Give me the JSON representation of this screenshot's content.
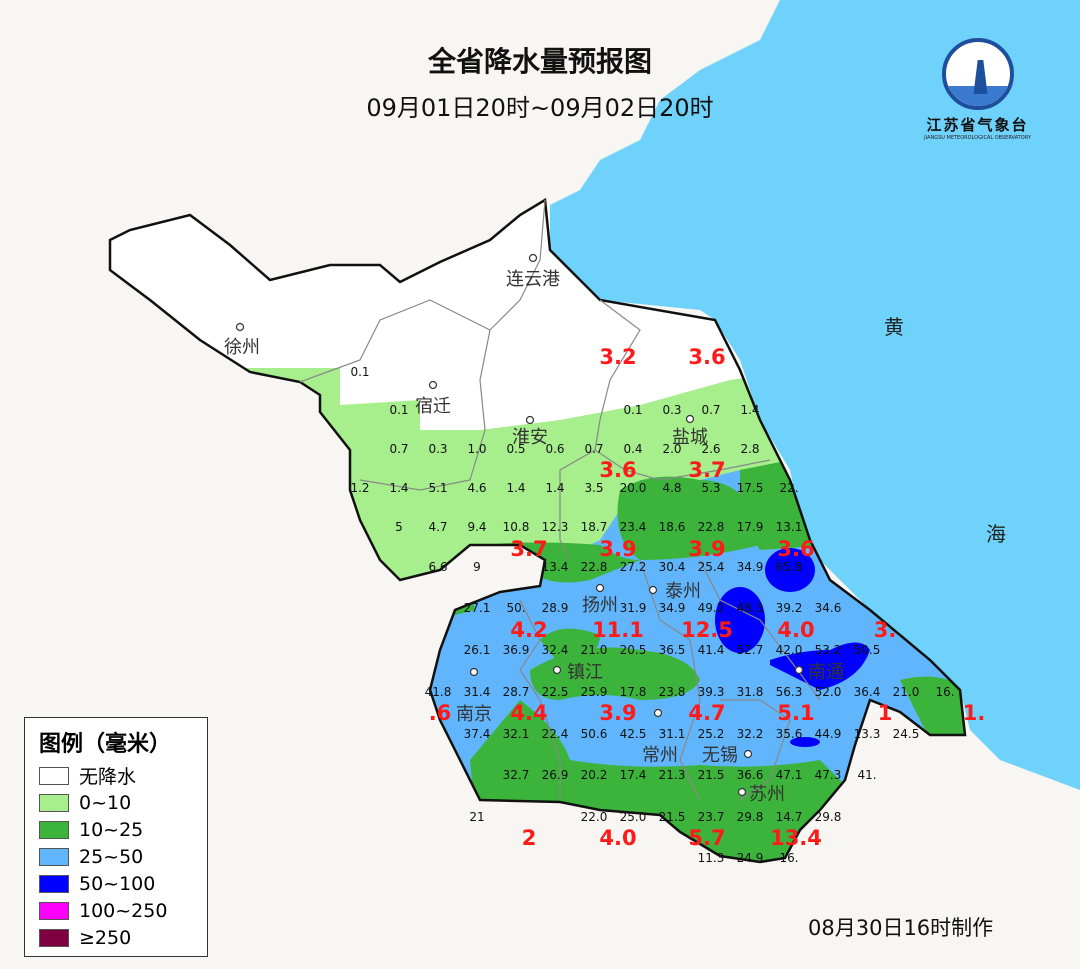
{
  "title": "全省降水量预报图",
  "subtitle": "09月01日20时~09月02日20时",
  "logo": {
    "name": "江苏省气象台",
    "english": "JIANGSU METEOROLOGICAL OBSERVATORY"
  },
  "colors": {
    "sea": "#6fd2fb",
    "land": "#f7f6f3",
    "none": "#ffffff",
    "r0_10": "#a6ef8c",
    "r10_25": "#3cb43c",
    "r25_50": "#61b5fd",
    "r50_100": "#0000fe",
    "r100_250": "#fd00fd",
    "r250": "#7f0040",
    "red_values": "#ff1a1a"
  },
  "sea_labels": [
    "黄",
    "海"
  ],
  "cities": [
    {
      "name": "连云港"
    },
    {
      "name": "徐州"
    },
    {
      "name": "宿迁"
    },
    {
      "name": "淮安"
    },
    {
      "name": "盐城"
    },
    {
      "name": "扬州"
    },
    {
      "name": "泰州"
    },
    {
      "name": "南京"
    },
    {
      "name": "镇江"
    },
    {
      "name": "南通"
    },
    {
      "name": "常州"
    },
    {
      "name": "无锡"
    },
    {
      "name": "苏州"
    }
  ],
  "station_values": [
    [
      "0.1"
    ],
    [
      null,
      "0.1",
      null,
      null,
      null,
      null,
      null,
      "0.1",
      "0.3",
      "0.7",
      "1.4"
    ],
    [
      null,
      "0.7",
      "0.3",
      "1.0",
      "0.5",
      "0.6",
      "0.7",
      "0.4",
      "2.0",
      "2.6",
      "2.8"
    ],
    [
      "1.2",
      "1.4",
      "5.1",
      "4.6",
      "1.4",
      "1.4",
      "3.5",
      "20.0",
      "4.8",
      "5.3",
      "17.5",
      "22."
    ],
    [
      null,
      "5",
      "4.7",
      "9.4",
      "10.8",
      "12.3",
      "18.7",
      "23.4",
      "18.6",
      "22.8",
      "17.9",
      "13.1"
    ],
    [
      null,
      null,
      "6.6",
      "9",
      null,
      "13.4",
      "22.8",
      "27.2",
      "30.4",
      "25.4",
      "34.9",
      "65.8"
    ],
    [
      null,
      null,
      null,
      "27.1",
      "50.",
      "28.9",
      null,
      "31.9",
      "34.9",
      "49.2",
      "48.3",
      "39.2",
      "34.6"
    ],
    [
      null,
      null,
      null,
      "26.1",
      "36.9",
      "32.4",
      "21.0",
      "20.5",
      "36.5",
      "41.4",
      "52.7",
      "42.0",
      "53.2",
      "50.5"
    ],
    [
      null,
      null,
      "41.8",
      "31.4",
      "28.7",
      "22.5",
      "25.9",
      "17.8",
      "23.8",
      "39.3",
      "31.8",
      "56.3",
      "52.0",
      "36.4",
      "21.0",
      "16."
    ],
    [
      null,
      null,
      null,
      "37.4",
      "32.1",
      "22.4",
      "50.6",
      "42.5",
      "31.1",
      "25.2",
      "32.2",
      "35.6",
      "44.9",
      "13.3",
      "24.5"
    ],
    [
      null,
      null,
      null,
      null,
      "32.7",
      "26.9",
      "20.2",
      "17.4",
      "21.3",
      "21.5",
      "36.6",
      "47.1",
      "47.3",
      "41."
    ],
    [
      null,
      null,
      null,
      "21",
      null,
      null,
      "22.0",
      "25.0",
      "21.5",
      "23.7",
      "29.8",
      "14.7",
      "29.8"
    ],
    [
      null,
      null,
      null,
      null,
      null,
      null,
      null,
      null,
      null,
      "11.3",
      "24.9",
      "16."
    ]
  ],
  "red_values": [
    [
      null,
      null,
      "3.2",
      "3.6"
    ],
    [
      null,
      null,
      "3.6",
      "3.7"
    ],
    [
      null,
      "3.7",
      "3.9",
      "3.9",
      "3.6"
    ],
    [
      null,
      "4.2",
      "11.1",
      "12.5",
      "4.0",
      "3."
    ],
    [
      ".6",
      "4.4",
      "3.9",
      "4.7",
      "5.1",
      "1",
      "1."
    ],
    [
      null,
      "2",
      "4.0",
      "5.7",
      "13.4"
    ]
  ],
  "legend": {
    "title": "图例（毫米）",
    "items": [
      {
        "label": "无降水",
        "color": "#ffffff"
      },
      {
        "label": "0~10",
        "color": "#a6ef8c"
      },
      {
        "label": "10~25",
        "color": "#3cb43c"
      },
      {
        "label": "25~50",
        "color": "#61b5fd"
      },
      {
        "label": "50~100",
        "color": "#0000fe"
      },
      {
        "label": "100~250",
        "color": "#fd00fd"
      },
      {
        "label": "≥250",
        "color": "#7f0040"
      }
    ]
  },
  "made_time": "08月30日16时制作"
}
